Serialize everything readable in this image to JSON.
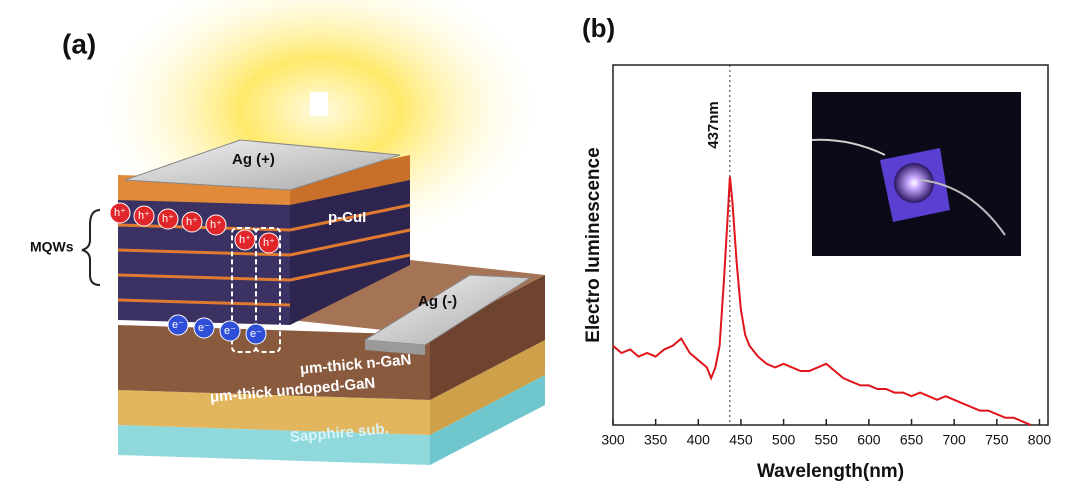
{
  "diagram": {
    "panel_label": "(a)",
    "anode": "Ag (+)",
    "p_layer": "p-CuI",
    "mqw": "MQWs",
    "cathode": "Ag (-)",
    "n_layer": "μm-thick n-GaN",
    "undoped_layer": "μm-thick undoped-GaN",
    "substrate": "Sapphire sub.",
    "holes": [
      "h⁺",
      "h⁺",
      "h⁺",
      "h⁺",
      "h⁺",
      "h⁺",
      "h⁺"
    ],
    "electrons": [
      "e⁻",
      "e⁻",
      "e⁻",
      "e⁻"
    ]
  },
  "chart_data": {
    "type": "line",
    "panel_label": "(b)",
    "xlabel": "Wavelength(nm)",
    "ylabel": "Electro luminescence",
    "annotation": {
      "text": "437nm",
      "x": 437
    },
    "color": "#e0151b",
    "x": [
      300,
      310,
      320,
      330,
      340,
      350,
      360,
      370,
      380,
      390,
      400,
      410,
      415,
      420,
      425,
      430,
      435,
      437,
      440,
      445,
      450,
      455,
      460,
      470,
      480,
      490,
      500,
      510,
      520,
      530,
      540,
      550,
      560,
      570,
      580,
      590,
      600,
      610,
      620,
      630,
      640,
      650,
      660,
      670,
      680,
      690,
      700,
      710,
      720,
      730,
      740,
      750,
      760,
      770,
      780,
      790
    ],
    "values": [
      22,
      20,
      21,
      19,
      20,
      19,
      21,
      22,
      24,
      20,
      18,
      16,
      13,
      16,
      22,
      40,
      60,
      69,
      62,
      45,
      32,
      25,
      22,
      19,
      17,
      16,
      17,
      16,
      15,
      15,
      16,
      17,
      15,
      13,
      12,
      11,
      11,
      10,
      10,
      9,
      9,
      8,
      9,
      8,
      7,
      8,
      7,
      6,
      5,
      4,
      4,
      3,
      2,
      2,
      1,
      0
    ],
    "xlim": [
      300,
      810
    ],
    "ylim": [
      0,
      100
    ],
    "xticks": [
      300,
      350,
      400,
      450,
      500,
      550,
      600,
      650,
      700,
      750,
      800
    ]
  }
}
